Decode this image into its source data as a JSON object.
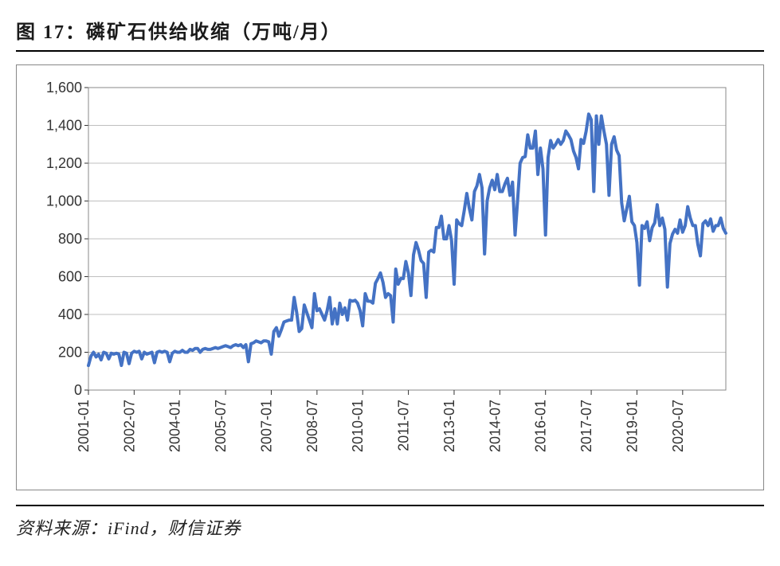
{
  "title": "图 17：磷矿石供给收缩（万吨/月）",
  "source": "资料来源：iFind，财信证券",
  "chart": {
    "type": "line",
    "line_color": "#4472c4",
    "line_width": 4,
    "background_color": "#ffffff",
    "grid_color": "#bfbfbf",
    "border_color": "#888888",
    "tick_fontsize": 18,
    "tick_color": "#333333",
    "ylim": [
      0,
      1600
    ],
    "ytick_step": 200,
    "yticks": [
      0,
      200,
      400,
      600,
      800,
      1000,
      1200,
      1400,
      1600
    ],
    "ytick_labels": [
      "0",
      "200",
      "400",
      "600",
      "800",
      "1,000",
      "1,200",
      "1,400",
      "1,600"
    ],
    "xtick_labels": [
      "2001-01",
      "2002-07",
      "2004-01",
      "2005-07",
      "2007-01",
      "2008-07",
      "2010-01",
      "2011-07",
      "2013-01",
      "2014-07",
      "2016-01",
      "2017-07",
      "2019-01",
      "2020-07"
    ],
    "xtick_positions": [
      0,
      18,
      36,
      54,
      72,
      90,
      108,
      126,
      144,
      162,
      180,
      198,
      216,
      234
    ],
    "x_range": [
      0,
      251
    ],
    "values": [
      130,
      180,
      200,
      175,
      190,
      160,
      200,
      195,
      165,
      195,
      190,
      195,
      190,
      130,
      200,
      195,
      140,
      195,
      205,
      200,
      205,
      165,
      200,
      190,
      195,
      200,
      145,
      200,
      205,
      200,
      205,
      200,
      150,
      195,
      205,
      200,
      200,
      210,
      200,
      200,
      215,
      210,
      220,
      220,
      200,
      215,
      220,
      215,
      215,
      220,
      225,
      220,
      225,
      230,
      235,
      230,
      225,
      235,
      240,
      235,
      240,
      225,
      240,
      150,
      245,
      250,
      260,
      255,
      250,
      260,
      260,
      255,
      190,
      310,
      330,
      285,
      320,
      360,
      365,
      370,
      370,
      490,
      410,
      310,
      325,
      450,
      410,
      370,
      330,
      510,
      420,
      430,
      400,
      370,
      420,
      490,
      350,
      430,
      350,
      460,
      400,
      435,
      370,
      475,
      470,
      475,
      460,
      420,
      340,
      510,
      470,
      470,
      460,
      565,
      590,
      620,
      570,
      490,
      510,
      500,
      360,
      640,
      560,
      590,
      590,
      680,
      620,
      500,
      715,
      780,
      740,
      685,
      670,
      490,
      730,
      740,
      730,
      860,
      860,
      920,
      800,
      800,
      870,
      790,
      560,
      900,
      880,
      870,
      950,
      1040,
      960,
      900,
      1050,
      1080,
      1140,
      1070,
      720,
      1000,
      1070,
      1110,
      1060,
      1140,
      1050,
      1050,
      1090,
      1120,
      1030,
      1100,
      820,
      1000,
      1200,
      1230,
      1235,
      1350,
      1280,
      1280,
      1370,
      1140,
      1280,
      1170,
      820,
      1230,
      1320,
      1280,
      1300,
      1325,
      1300,
      1320,
      1370,
      1350,
      1325,
      1265,
      1230,
      1170,
      1325,
      1305,
      1370,
      1460,
      1430,
      1050,
      1450,
      1300,
      1450,
      1370,
      1300,
      1030,
      1300,
      1340,
      1270,
      1240,
      990,
      895,
      960,
      1025,
      890,
      870,
      780,
      555,
      870,
      855,
      890,
      790,
      860,
      885,
      980,
      870,
      910,
      850,
      545,
      775,
      825,
      850,
      830,
      900,
      835,
      870,
      970,
      910,
      870,
      870,
      770,
      710,
      880,
      895,
      870,
      905,
      840,
      870,
      870,
      910,
      855,
      830
    ]
  }
}
